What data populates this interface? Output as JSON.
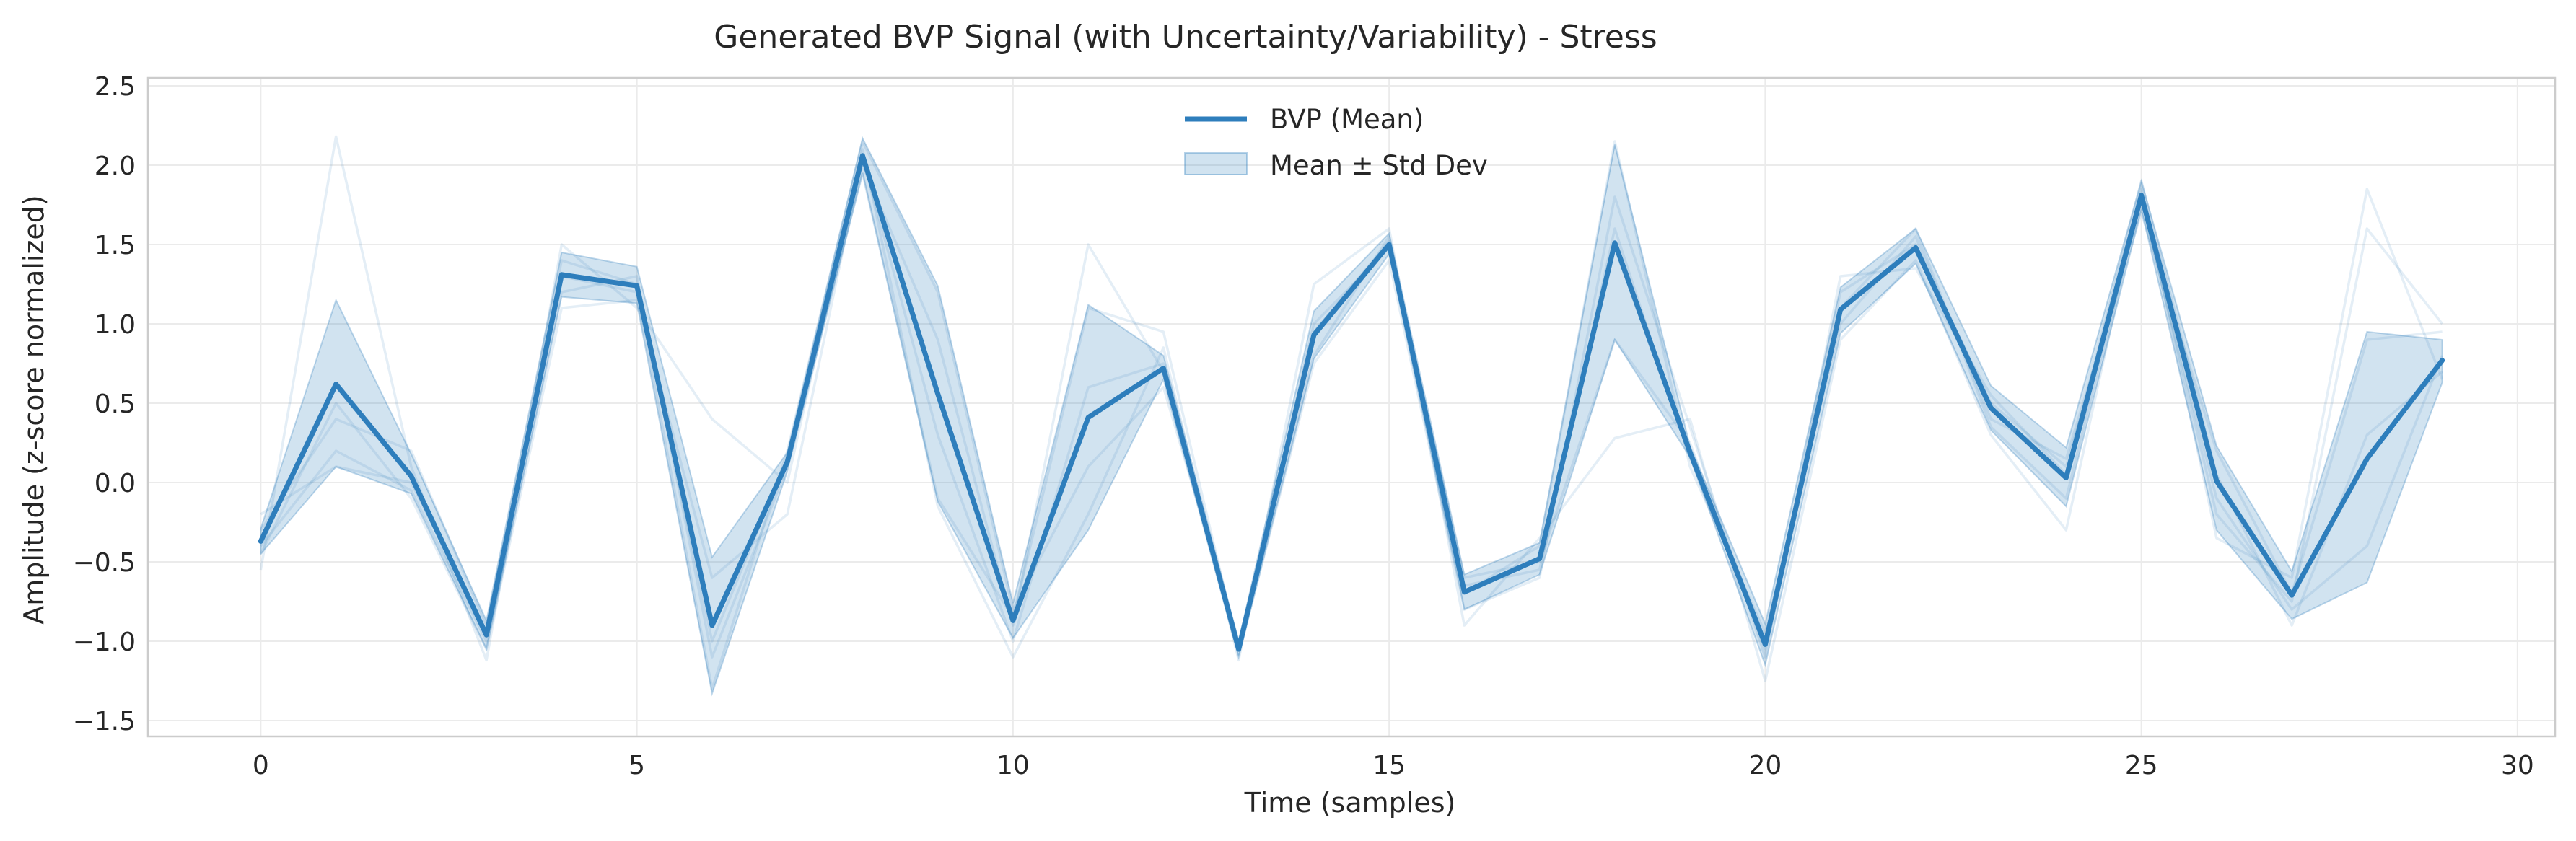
{
  "chart_data": {
    "type": "line",
    "title": "Generated BVP Signal (with Uncertainty/Variability) - Stress",
    "xlabel": "Time (samples)",
    "ylabel": "Amplitude (z-score normalized)",
    "xlim": [
      -1.5,
      30.5
    ],
    "ylim": [
      -1.6,
      2.55
    ],
    "xticks": [
      0,
      5,
      10,
      15,
      20,
      25,
      30
    ],
    "xtick_labels": [
      "0",
      "5",
      "10",
      "15",
      "20",
      "25",
      "30"
    ],
    "yticks": [
      -1.5,
      -1.0,
      -0.5,
      0.0,
      0.5,
      1.0,
      1.5,
      2.0,
      2.5
    ],
    "ytick_labels": [
      "−1.5",
      "−1.0",
      "−0.5",
      "0.0",
      "0.5",
      "1.0",
      "1.5",
      "2.0",
      "2.5"
    ],
    "grid": true,
    "legend_position": "top-center",
    "x": [
      0,
      1,
      2,
      3,
      4,
      5,
      6,
      7,
      8,
      9,
      10,
      11,
      12,
      13,
      14,
      15,
      16,
      17,
      18,
      19,
      20,
      21,
      22,
      23,
      24,
      25,
      26,
      27,
      28,
      29
    ],
    "series": [
      {
        "name": "BVP (Mean)",
        "color": "#2e7ebc",
        "values": [
          -0.37,
          0.62,
          0.04,
          -0.96,
          1.31,
          1.24,
          -0.9,
          0.13,
          2.06,
          0.56,
          -0.87,
          0.41,
          0.72,
          -1.05,
          0.93,
          1.5,
          -0.69,
          -0.48,
          1.51,
          0.19,
          -1.02,
          1.09,
          1.48,
          0.47,
          0.03,
          1.81,
          0.01,
          -0.71,
          0.15,
          0.77
        ]
      }
    ],
    "band": {
      "name": "Mean ± Std Dev",
      "color": "#2e7ebc",
      "lower": [
        -0.45,
        0.1,
        -0.07,
        -1.05,
        1.17,
        1.13,
        -1.33,
        0.07,
        1.95,
        -0.12,
        -0.98,
        -0.3,
        0.65,
        -1.1,
        0.78,
        1.44,
        -0.8,
        -0.58,
        0.9,
        0.16,
        -1.15,
        0.94,
        1.38,
        0.33,
        -0.15,
        1.72,
        -0.3,
        -0.86,
        -0.63,
        0.63
      ],
      "upper": [
        -0.29,
        1.15,
        0.18,
        -0.87,
        1.45,
        1.36,
        -0.47,
        0.19,
        2.17,
        1.24,
        -0.76,
        1.12,
        0.8,
        -1.0,
        1.08,
        1.57,
        -0.58,
        -0.38,
        2.13,
        0.23,
        -0.89,
        1.23,
        1.6,
        0.61,
        0.22,
        1.9,
        0.23,
        -0.56,
        0.95,
        0.9
      ]
    },
    "samples": [
      [
        -0.4,
        0.2,
        -0.05,
        -1.0,
        1.2,
        1.3,
        -1.1,
        0.1,
        2.0,
        0.9,
        -0.9,
        1.5,
        0.7,
        -1.06,
        1.0,
        1.48,
        -0.6,
        -0.5,
        0.9,
        0.25,
        -1.05,
        1.2,
        1.5,
        0.5,
        0.1,
        1.75,
        -0.1,
        -0.8,
        -0.4,
        0.8
      ],
      [
        -0.55,
        2.18,
        0.1,
        -1.12,
        1.5,
        1.1,
        0.4,
        0.0,
        2.1,
        -0.15,
        -1.1,
        -0.2,
        0.85,
        -1.12,
        1.25,
        1.6,
        -0.9,
        -0.35,
        0.28,
        0.4,
        -1.25,
        0.9,
        1.4,
        0.3,
        -0.3,
        1.85,
        -0.35,
        -0.6,
        1.85,
        0.65
      ],
      [
        -0.3,
        0.4,
        0.2,
        -0.9,
        1.3,
        1.2,
        -1.3,
        0.2,
        2.15,
        1.2,
        -0.8,
        0.1,
        0.6,
        -1.0,
        0.8,
        1.55,
        -0.7,
        -0.4,
        2.15,
        0.1,
        -0.95,
        1.0,
        1.55,
        0.4,
        0.15,
        1.7,
        0.2,
        -0.7,
        0.9,
        0.95
      ],
      [
        -0.45,
        0.5,
        -0.1,
        -1.05,
        1.1,
        1.15,
        -0.6,
        -0.2,
        2.05,
        0.3,
        -1.0,
        0.6,
        0.75,
        -1.08,
        0.75,
        1.4,
        -0.8,
        -0.6,
        1.8,
        0.35,
        -1.1,
        1.3,
        1.35,
        0.55,
        0.05,
        1.9,
        0.05,
        -0.9,
        0.3,
        0.7
      ],
      [
        -0.2,
        0.1,
        0.0,
        -0.95,
        1.4,
        1.25,
        -1.0,
        0.15,
        1.95,
        -0.1,
        -0.85,
        1.1,
        0.95,
        -1.05,
        0.95,
        1.52,
        -0.65,
        -0.55,
        1.6,
        0.15,
        -1.0,
        1.1,
        1.6,
        0.35,
        -0.1,
        1.8,
        -0.2,
        -0.75,
        1.6,
        1.0
      ]
    ]
  }
}
